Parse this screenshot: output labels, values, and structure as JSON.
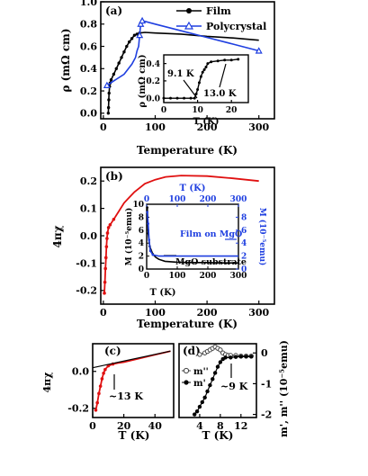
{
  "chart_data": [
    {
      "id": "a",
      "panel_label": "(a)",
      "type": "line",
      "xlabel": "Temperature (K)",
      "ylabel": "ρ (mΩ cm)",
      "xlim": [
        -5,
        330
      ],
      "ylim": [
        -0.05,
        1.0
      ],
      "xticks": [
        0,
        100,
        200,
        300
      ],
      "yticks": [
        0.0,
        0.2,
        0.4,
        0.6,
        0.8,
        1.0
      ],
      "ytick_labels": [
        "0.0",
        "0.2",
        "0.4",
        "0.6",
        "0.8",
        "1.0"
      ],
      "legend": [
        "Film",
        "Polycrystal"
      ],
      "legend_placement": "top-right",
      "series": [
        {
          "name": "Film",
          "color": "#000000",
          "marker": "circle-filled",
          "points": [
            [
              9.5,
              0.0
            ],
            [
              10,
              0.05
            ],
            [
              10.5,
              0.12
            ],
            [
              11,
              0.18
            ],
            [
              12,
              0.24
            ],
            [
              13,
              0.27
            ],
            [
              15,
              0.3
            ],
            [
              20,
              0.35
            ],
            [
              25,
              0.4
            ],
            [
              30,
              0.45
            ],
            [
              35,
              0.5
            ],
            [
              40,
              0.55
            ],
            [
              45,
              0.6
            ],
            [
              50,
              0.64
            ],
            [
              55,
              0.67
            ],
            [
              60,
              0.7
            ],
            [
              65,
              0.71
            ],
            [
              70,
              0.72
            ],
            [
              80,
              0.725
            ],
            [
              100,
              0.72
            ],
            [
              150,
              0.71
            ],
            [
              200,
              0.69
            ],
            [
              250,
              0.675
            ],
            [
              300,
              0.655
            ]
          ]
        },
        {
          "name": "Polycrystal",
          "color": "#1f3fe0",
          "marker": "triangle-open",
          "points": [
            [
              7,
              0.25
            ],
            [
              20,
              0.29
            ],
            [
              40,
              0.35
            ],
            [
              55,
              0.44
            ],
            [
              62,
              0.5
            ],
            [
              65,
              0.56
            ],
            [
              68,
              0.6
            ],
            [
              70,
              0.7
            ],
            [
              72,
              0.8
            ],
            [
              75,
              0.83
            ],
            [
              100,
              0.8
            ],
            [
              150,
              0.74
            ],
            [
              200,
              0.68
            ],
            [
              250,
              0.62
            ],
            [
              300,
              0.56
            ]
          ]
        }
      ],
      "inset": {
        "xlabel": "T (K)",
        "ylabel": "ρ (mΩ cm)",
        "xlim": [
          0,
          25
        ],
        "ylim": [
          -0.05,
          0.5
        ],
        "xticks": [
          0,
          10,
          20
        ],
        "yticks": [
          0.0,
          0.2,
          0.4
        ],
        "ytick_labels": [
          "0.0",
          "0.2",
          "0.4"
        ],
        "annotations": [
          "9.1 K",
          "13.0 K"
        ],
        "points": [
          [
            0,
            0.0
          ],
          [
            2,
            0.0
          ],
          [
            4,
            0.0
          ],
          [
            6,
            0.0
          ],
          [
            8,
            0.0
          ],
          [
            9.1,
            0.0
          ],
          [
            9.6,
            0.05
          ],
          [
            10,
            0.1
          ],
          [
            10.5,
            0.18
          ],
          [
            11,
            0.25
          ],
          [
            11.5,
            0.3
          ],
          [
            12,
            0.33
          ],
          [
            12.5,
            0.36
          ],
          [
            13,
            0.4
          ],
          [
            14,
            0.42
          ],
          [
            16,
            0.43
          ],
          [
            18,
            0.44
          ],
          [
            20,
            0.44
          ],
          [
            22,
            0.45
          ]
        ]
      }
    },
    {
      "id": "b",
      "panel_label": "(b)",
      "type": "line",
      "xlabel": "Temperature (K)",
      "ylabel": "4πχ",
      "xlim": [
        -5,
        330
      ],
      "ylim": [
        -0.25,
        0.25
      ],
      "xticks": [
        0,
        100,
        200,
        300
      ],
      "yticks": [
        -0.2,
        -0.1,
        0.0,
        0.1,
        0.2
      ],
      "ytick_labels": [
        "-0.2",
        "-0.1",
        "0.0",
        "0.1",
        "0.2"
      ],
      "series": [
        {
          "name": "",
          "color": "#e01010",
          "marker": "circle-filled",
          "points": [
            [
              2,
              -0.21
            ],
            [
              3,
              -0.17
            ],
            [
              4,
              -0.12
            ],
            [
              5,
              -0.08
            ],
            [
              6,
              -0.04
            ],
            [
              7,
              -0.01
            ],
            [
              8,
              0.01
            ],
            [
              10,
              0.03
            ],
            [
              13,
              0.04
            ],
            [
              20,
              0.06
            ],
            [
              30,
              0.09
            ],
            [
              40,
              0.12
            ],
            [
              50,
              0.14
            ],
            [
              60,
              0.16
            ],
            [
              70,
              0.175
            ],
            [
              80,
              0.19
            ],
            [
              100,
              0.205
            ],
            [
              120,
              0.215
            ],
            [
              150,
              0.22
            ],
            [
              200,
              0.218
            ],
            [
              250,
              0.21
            ],
            [
              300,
              0.2
            ]
          ]
        }
      ],
      "inset": {
        "xlabel_bottom": "T (K)",
        "xlabel_top": "T (K)",
        "ylabel_left": "M (10⁻⁵emu)",
        "ylabel_right": "M (10⁻⁵emu)",
        "xlim": [
          0,
          300
        ],
        "xticks": [
          0,
          100,
          200,
          300
        ],
        "ylim_left": [
          0,
          10
        ],
        "yticks_left": [
          0,
          2,
          4,
          6,
          8,
          10
        ],
        "ylim_right": [
          0,
          10
        ],
        "yticks_right": [
          0,
          2,
          4,
          6,
          8
        ],
        "annotations": [
          "Film on MgO",
          "MgO substrate"
        ],
        "series": [
          {
            "name": "",
            "color": "#000000",
            "axis": "left",
            "points": [
              [
                2,
                9.5
              ],
              [
                5,
                5.5
              ],
              [
                10,
                3.5
              ],
              [
                20,
                2.3
              ],
              [
                30,
                1.8
              ],
              [
                40,
                1.5
              ],
              [
                60,
                1.2
              ],
              [
                100,
                1.05
              ],
              [
                150,
                1.0
              ],
              [
                200,
                1.0
              ],
              [
                250,
                0.95
              ],
              [
                300,
                0.95
              ]
            ]
          },
          {
            "name": "",
            "color": "#1f3fe0",
            "axis": "right",
            "points": [
              [
                2,
                8.8
              ],
              [
                5,
                7.0
              ],
              [
                8,
                4.5
              ],
              [
                12,
                2.8
              ],
              [
                20,
                2.2
              ],
              [
                40,
                2.0
              ],
              [
                100,
                2.0
              ],
              [
                150,
                2.0
              ],
              [
                200,
                2.0
              ],
              [
                250,
                2.0
              ],
              [
                300,
                2.0
              ]
            ]
          }
        ]
      }
    },
    {
      "id": "c",
      "panel_label": "(c)",
      "type": "line",
      "xlabel": "T (K)",
      "ylabel": "4πχ",
      "xlim": [
        0,
        52
      ],
      "ylim": [
        -0.25,
        0.15
      ],
      "xticks": [
        0,
        20,
        40
      ],
      "yticks": [
        -0.2,
        0.0
      ],
      "ytick_labels": [
        "-0.2",
        "0.0"
      ],
      "annotations": [
        "~13 K"
      ],
      "series": [
        {
          "name": "",
          "color": "#e01010",
          "marker": "circle-filled",
          "points": [
            [
              2,
              -0.21
            ],
            [
              3,
              -0.17
            ],
            [
              4,
              -0.12
            ],
            [
              5,
              -0.08
            ],
            [
              6,
              -0.04
            ],
            [
              7,
              -0.01
            ],
            [
              8,
              0.01
            ],
            [
              10,
              0.03
            ],
            [
              13,
              0.04
            ],
            [
              16,
              0.045
            ],
            [
              20,
              0.05
            ],
            [
              30,
              0.07
            ],
            [
              40,
              0.09
            ],
            [
              50,
              0.11
            ]
          ]
        }
      ],
      "fit_line": {
        "color": "#000000",
        "from": [
          0,
          0.02
        ],
        "to": [
          50,
          0.11
        ]
      }
    },
    {
      "id": "d",
      "panel_label": "(d)",
      "type": "scatter",
      "xlabel": "T (K)",
      "ylabel_right": "m', m'' (10⁻⁵emu)",
      "xlim": [
        0,
        15
      ],
      "ylim": [
        -2.1,
        0.3
      ],
      "xticks": [
        4,
        8,
        12
      ],
      "yticks": [
        0,
        -1,
        -2
      ],
      "ytick_labels": [
        "0",
        "-1",
        "-2"
      ],
      "annotations": [
        "~9 K"
      ],
      "legend": [
        "m''",
        "m'"
      ],
      "series": [
        {
          "name": "m''",
          "color": "#444444",
          "marker": "circle-open",
          "points": [
            [
              4,
              -0.05
            ],
            [
              5,
              0.0
            ],
            [
              5.5,
              0.05
            ],
            [
              6,
              0.1
            ],
            [
              6.5,
              0.15
            ],
            [
              7,
              0.2
            ],
            [
              7.5,
              0.15
            ],
            [
              8,
              0.1
            ],
            [
              8.5,
              0.0
            ],
            [
              9,
              -0.05
            ],
            [
              9.5,
              -0.08
            ],
            [
              10,
              -0.08
            ],
            [
              11,
              -0.08
            ],
            [
              12,
              -0.1
            ],
            [
              13,
              -0.1
            ],
            [
              14,
              -0.1
            ]
          ]
        },
        {
          "name": "m'",
          "color": "#000000",
          "marker": "circle-filled",
          "points": [
            [
              3,
              -2.0
            ],
            [
              3.5,
              -1.9
            ],
            [
              4,
              -1.75
            ],
            [
              4.5,
              -1.6
            ],
            [
              5,
              -1.45
            ],
            [
              5.5,
              -1.25
            ],
            [
              6,
              -1.05
            ],
            [
              6.5,
              -0.85
            ],
            [
              7,
              -0.65
            ],
            [
              7.5,
              -0.45
            ],
            [
              8,
              -0.3
            ],
            [
              8.5,
              -0.2
            ],
            [
              9,
              -0.15
            ],
            [
              10,
              -0.15
            ],
            [
              11,
              -0.13
            ],
            [
              12,
              -0.12
            ],
            [
              13,
              -0.12
            ],
            [
              14,
              -0.12
            ]
          ]
        }
      ]
    }
  ]
}
